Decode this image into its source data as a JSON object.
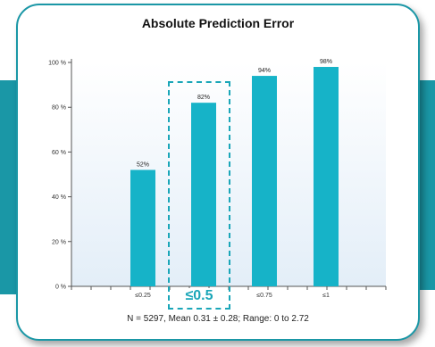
{
  "chart_data": {
    "type": "bar",
    "title": "Absolute Prediction Error",
    "categories": [
      "≤0.25",
      "≤0.5",
      "≤0.75",
      "≤1"
    ],
    "values": [
      52,
      82,
      94,
      98
    ],
    "value_labels": [
      "52%",
      "82%",
      "94%",
      "98%"
    ],
    "ylim": [
      0,
      100
    ],
    "yticks": [
      0,
      20,
      40,
      60,
      80,
      100
    ],
    "ytick_labels": [
      "0 %",
      "20 %",
      "40 %",
      "60 %",
      "80 %",
      "100 %"
    ],
    "highlighted_category": "≤0.5",
    "footnote": "N = 5297, Mean 0.31 ± 0.28; Range: 0 to 2.72",
    "bar_color": "#16b3c8",
    "background_gradient": [
      "#ffffff",
      "#e3eef8"
    ],
    "grid": false
  },
  "highlight": {
    "label": "≤0.5",
    "color": "#1aa6b8"
  },
  "frame": {
    "accent_color": "#1a97a6"
  }
}
